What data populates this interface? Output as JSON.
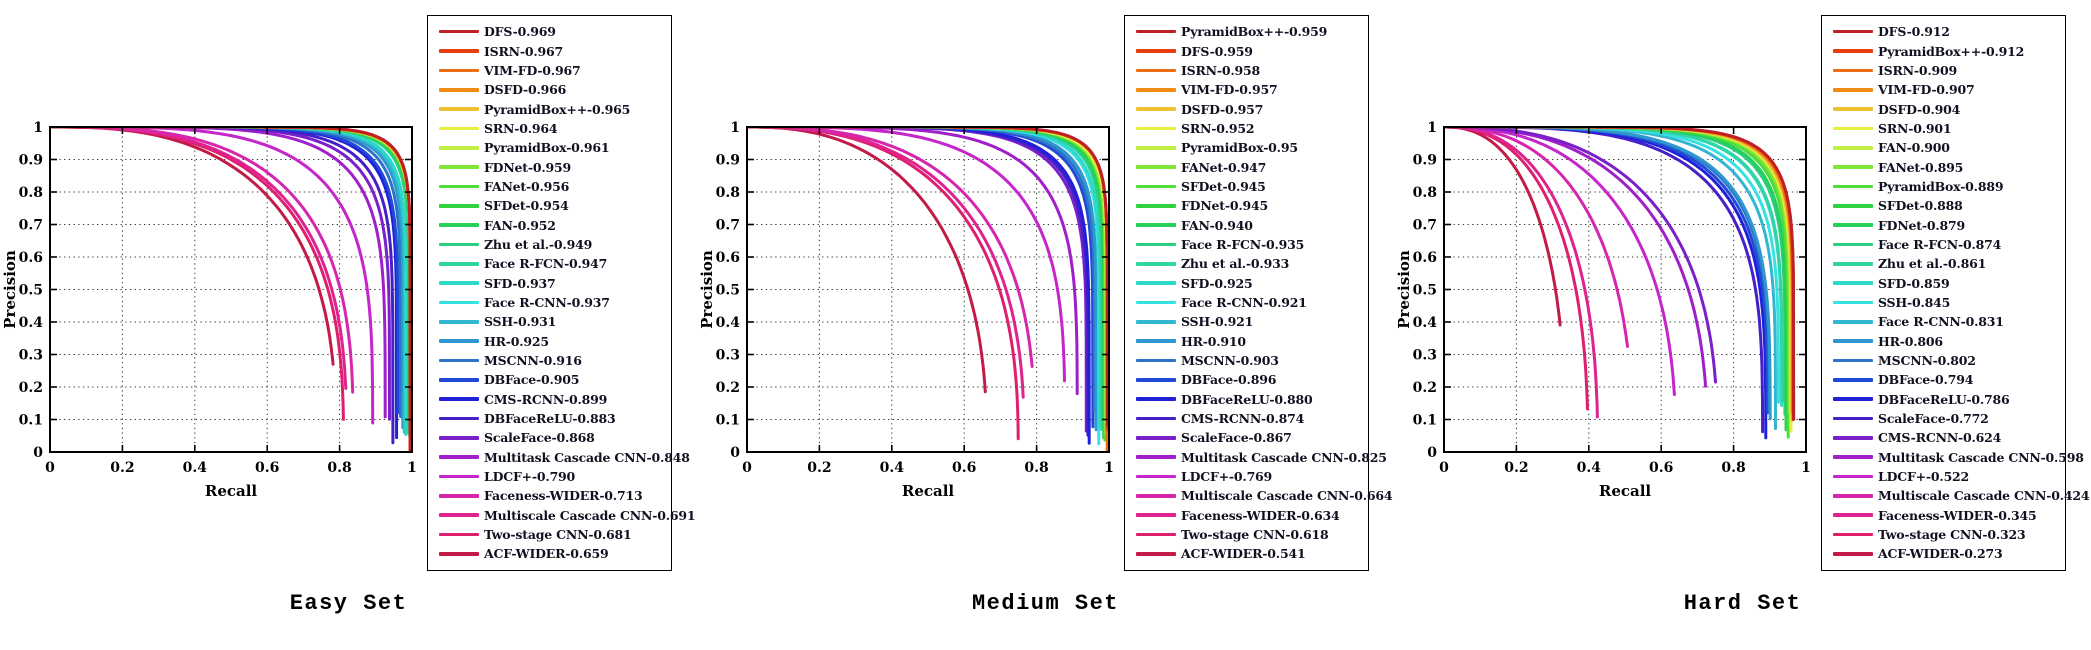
{
  "page": {
    "background": "#ffffff"
  },
  "palette": [
    "#bf2026",
    "#e63e11",
    "#ee6c12",
    "#f08c15",
    "#eec133",
    "#e6ee3e",
    "#c0ee42",
    "#7fe53a",
    "#4dde3a",
    "#2ed33e",
    "#26cf58",
    "#2bcf84",
    "#31d5a4",
    "#2ad9c8",
    "#35e2e2",
    "#33b6cf",
    "#2f97cf",
    "#2a75c9",
    "#1f49d6",
    "#2020d9",
    "#4520c9",
    "#7a1fc9",
    "#a01fc9",
    "#c426c9",
    "#d626ae",
    "#de2390",
    "#dd1f6e",
    "#c41a48"
  ],
  "axis_style": {
    "box_color": "#000000",
    "grid_color": "#333333",
    "grid_style": "dotted",
    "tick_label_color": "#000000"
  },
  "chart_data": [
    {
      "type": "line",
      "title": "Easy Set",
      "xlabel": "Recall",
      "ylabel": "Precision",
      "xlim": [
        0,
        1
      ],
      "ylim": [
        0,
        1
      ],
      "grid": true,
      "legend_position": "right",
      "x_ticks": [
        "0",
        "0.2",
        "0.4",
        "0.6",
        "0.8",
        "1"
      ],
      "y_ticks": [
        "0",
        "0.1",
        "0.2",
        "0.3",
        "0.4",
        "0.5",
        "0.6",
        "0.7",
        "0.8",
        "0.9",
        "1"
      ],
      "series": [
        {
          "name": "DFS",
          "ap": 0.969,
          "label": "DFS-0.969"
        },
        {
          "name": "ISRN",
          "ap": 0.967,
          "label": "ISRN-0.967"
        },
        {
          "name": "VIM-FD",
          "ap": 0.967,
          "label": "VIM-FD-0.967"
        },
        {
          "name": "DSFD",
          "ap": 0.966,
          "label": "DSFD-0.966"
        },
        {
          "name": "PyramidBox++",
          "ap": 0.965,
          "label": "PyramidBox++-0.965"
        },
        {
          "name": "SRN",
          "ap": 0.964,
          "label": "SRN-0.964"
        },
        {
          "name": "PyramidBox",
          "ap": 0.961,
          "label": "PyramidBox-0.961"
        },
        {
          "name": "FDNet",
          "ap": 0.959,
          "label": "FDNet-0.959"
        },
        {
          "name": "FANet",
          "ap": 0.956,
          "label": "FANet-0.956"
        },
        {
          "name": "SFDet",
          "ap": 0.954,
          "label": "SFDet-0.954"
        },
        {
          "name": "FAN",
          "ap": 0.952,
          "label": "FAN-0.952"
        },
        {
          "name": "Zhu et al.",
          "ap": 0.949,
          "label": "Zhu et al.-0.949"
        },
        {
          "name": "Face R-FCN",
          "ap": 0.947,
          "label": "Face R-FCN-0.947"
        },
        {
          "name": "SFD",
          "ap": 0.937,
          "label": "SFD-0.937"
        },
        {
          "name": "Face R-CNN",
          "ap": 0.937,
          "label": "Face R-CNN-0.937"
        },
        {
          "name": "SSH",
          "ap": 0.931,
          "label": "SSH-0.931"
        },
        {
          "name": "HR",
          "ap": 0.925,
          "label": "HR-0.925"
        },
        {
          "name": "MSCNN",
          "ap": 0.916,
          "label": "MSCNN-0.916"
        },
        {
          "name": "DBFace",
          "ap": 0.905,
          "label": "DBFace-0.905"
        },
        {
          "name": "CMS-RCNN",
          "ap": 0.899,
          "label": "CMS-RCNN-0.899"
        },
        {
          "name": "DBFaceReLU",
          "ap": 0.883,
          "label": "DBFaceReLU-0.883"
        },
        {
          "name": "ScaleFace",
          "ap": 0.868,
          "label": "ScaleFace-0.868"
        },
        {
          "name": "Multitask Cascade CNN",
          "ap": 0.848,
          "label": "Multitask Cascade CNN-0.848"
        },
        {
          "name": "LDCF+",
          "ap": 0.79,
          "label": "LDCF+-0.790"
        },
        {
          "name": "Faceness-WIDER",
          "ap": 0.713,
          "label": "Faceness-WIDER-0.713"
        },
        {
          "name": "Multiscale Cascade CNN",
          "ap": 0.691,
          "label": "Multiscale Cascade CNN-0.691"
        },
        {
          "name": "Two-stage CNN",
          "ap": 0.681,
          "label": "Two-stage CNN-0.681"
        },
        {
          "name": "ACF-WIDER",
          "ap": 0.659,
          "label": "ACF-WIDER-0.659"
        }
      ]
    },
    {
      "type": "line",
      "title": "Medium Set",
      "xlabel": "Recall",
      "ylabel": "Precision",
      "xlim": [
        0,
        1
      ],
      "ylim": [
        0,
        1
      ],
      "grid": true,
      "legend_position": "right",
      "x_ticks": [
        "0",
        "0.2",
        "0.4",
        "0.6",
        "0.8",
        "1"
      ],
      "y_ticks": [
        "0",
        "0.1",
        "0.2",
        "0.3",
        "0.4",
        "0.5",
        "0.6",
        "0.7",
        "0.8",
        "0.9",
        "1"
      ],
      "series": [
        {
          "name": "PyramidBox++",
          "ap": 0.959,
          "label": "PyramidBox++-0.959"
        },
        {
          "name": "DFS",
          "ap": 0.959,
          "label": "DFS-0.959"
        },
        {
          "name": "ISRN",
          "ap": 0.958,
          "label": "ISRN-0.958"
        },
        {
          "name": "VIM-FD",
          "ap": 0.957,
          "label": "VIM-FD-0.957"
        },
        {
          "name": "DSFD",
          "ap": 0.957,
          "label": "DSFD-0.957"
        },
        {
          "name": "SRN",
          "ap": 0.952,
          "label": "SRN-0.952"
        },
        {
          "name": "PyramidBox",
          "ap": 0.95,
          "label": "PyramidBox-0.95"
        },
        {
          "name": "FANet",
          "ap": 0.947,
          "label": "FANet-0.947"
        },
        {
          "name": "SFDet",
          "ap": 0.945,
          "label": "SFDet-0.945"
        },
        {
          "name": "FDNet",
          "ap": 0.945,
          "label": "FDNet-0.945"
        },
        {
          "name": "FAN",
          "ap": 0.94,
          "label": "FAN-0.940"
        },
        {
          "name": "Face R-FCN",
          "ap": 0.935,
          "label": "Face R-FCN-0.935"
        },
        {
          "name": "Zhu et al.",
          "ap": 0.933,
          "label": "Zhu et al.-0.933"
        },
        {
          "name": "SFD",
          "ap": 0.925,
          "label": "SFD-0.925"
        },
        {
          "name": "Face R-CNN",
          "ap": 0.921,
          "label": "Face R-CNN-0.921"
        },
        {
          "name": "SSH",
          "ap": 0.921,
          "label": "SSH-0.921"
        },
        {
          "name": "HR",
          "ap": 0.91,
          "label": "HR-0.910"
        },
        {
          "name": "MSCNN",
          "ap": 0.903,
          "label": "MSCNN-0.903"
        },
        {
          "name": "DBFace",
          "ap": 0.896,
          "label": "DBFace-0.896"
        },
        {
          "name": "DBFaceReLU",
          "ap": 0.88,
          "label": "DBFaceReLU-0.880"
        },
        {
          "name": "CMS-RCNN",
          "ap": 0.874,
          "label": "CMS-RCNN-0.874"
        },
        {
          "name": "ScaleFace",
          "ap": 0.867,
          "label": "ScaleFace-0.867"
        },
        {
          "name": "Multitask Cascade CNN",
          "ap": 0.825,
          "label": "Multitask Cascade CNN-0.825"
        },
        {
          "name": "LDCF+",
          "ap": 0.769,
          "label": "LDCF+-0.769"
        },
        {
          "name": "Multiscale Cascade CNN",
          "ap": 0.664,
          "label": "Multiscale Cascade CNN-0.664"
        },
        {
          "name": "Faceness-WIDER",
          "ap": 0.634,
          "label": "Faceness-WIDER-0.634"
        },
        {
          "name": "Two-stage CNN",
          "ap": 0.618,
          "label": "Two-stage CNN-0.618"
        },
        {
          "name": "ACF-WIDER",
          "ap": 0.541,
          "label": "ACF-WIDER-0.541"
        }
      ]
    },
    {
      "type": "line",
      "title": "Hard Set",
      "xlabel": "Recall",
      "ylabel": "Precision",
      "xlim": [
        0,
        1
      ],
      "ylim": [
        0,
        1
      ],
      "grid": true,
      "legend_position": "right",
      "x_ticks": [
        "0",
        "0.2",
        "0.4",
        "0.6",
        "0.8",
        "1"
      ],
      "y_ticks": [
        "0",
        "0.1",
        "0.2",
        "0.3",
        "0.4",
        "0.5",
        "0.6",
        "0.7",
        "0.8",
        "0.9",
        "1"
      ],
      "series": [
        {
          "name": "DFS",
          "ap": 0.912,
          "label": "DFS-0.912"
        },
        {
          "name": "PyramidBox++",
          "ap": 0.912,
          "label": "PyramidBox++-0.912"
        },
        {
          "name": "ISRN",
          "ap": 0.909,
          "label": "ISRN-0.909"
        },
        {
          "name": "VIM-FD",
          "ap": 0.907,
          "label": "VIM-FD-0.907"
        },
        {
          "name": "DSFD",
          "ap": 0.904,
          "label": "DSFD-0.904"
        },
        {
          "name": "SRN",
          "ap": 0.901,
          "label": "SRN-0.901"
        },
        {
          "name": "FAN",
          "ap": 0.9,
          "label": "FAN-0.900"
        },
        {
          "name": "FANet",
          "ap": 0.895,
          "label": "FANet-0.895"
        },
        {
          "name": "PyramidBox",
          "ap": 0.889,
          "label": "PyramidBox-0.889"
        },
        {
          "name": "SFDet",
          "ap": 0.888,
          "label": "SFDet-0.888"
        },
        {
          "name": "FDNet",
          "ap": 0.879,
          "label": "FDNet-0.879"
        },
        {
          "name": "Face R-FCN",
          "ap": 0.874,
          "label": "Face R-FCN-0.874"
        },
        {
          "name": "Zhu et al.",
          "ap": 0.861,
          "label": "Zhu et al.-0.861"
        },
        {
          "name": "SFD",
          "ap": 0.859,
          "label": "SFD-0.859"
        },
        {
          "name": "SSH",
          "ap": 0.845,
          "label": "SSH-0.845"
        },
        {
          "name": "Face R-CNN",
          "ap": 0.831,
          "label": "Face R-CNN-0.831"
        },
        {
          "name": "HR",
          "ap": 0.806,
          "label": "HR-0.806"
        },
        {
          "name": "MSCNN",
          "ap": 0.802,
          "label": "MSCNN-0.802"
        },
        {
          "name": "DBFace",
          "ap": 0.794,
          "label": "DBFace-0.794"
        },
        {
          "name": "DBFaceReLU",
          "ap": 0.786,
          "label": "DBFaceReLU-0.786"
        },
        {
          "name": "ScaleFace",
          "ap": 0.772,
          "label": "ScaleFace-0.772"
        },
        {
          "name": "CMS-RCNN",
          "ap": 0.624,
          "label": "CMS-RCNN-0.624"
        },
        {
          "name": "Multitask Cascade CNN",
          "ap": 0.598,
          "label": "Multitask Cascade CNN-0.598"
        },
        {
          "name": "LDCF+",
          "ap": 0.522,
          "label": "LDCF+-0.522"
        },
        {
          "name": "Multiscale Cascade CNN",
          "ap": 0.424,
          "label": "Multiscale Cascade CNN-0.424"
        },
        {
          "name": "Faceness-WIDER",
          "ap": 0.345,
          "label": "Faceness-WIDER-0.345"
        },
        {
          "name": "Two-stage CNN",
          "ap": 0.323,
          "label": "Two-stage CNN-0.323"
        },
        {
          "name": "ACF-WIDER",
          "ap": 0.273,
          "label": "ACF-WIDER-0.273"
        }
      ]
    }
  ]
}
